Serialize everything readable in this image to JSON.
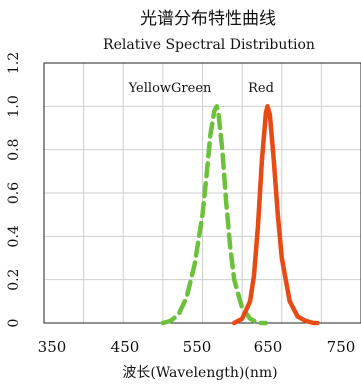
{
  "chart_data": {
    "type": "line",
    "title": "光谱分布特性曲线",
    "subtitle": "Relative Spectral Distribution",
    "xlabel": "波长(Wavelength)(nm)",
    "ylabel": "",
    "xlim": [
      350,
      750
    ],
    "ylim": [
      0,
      1.2
    ],
    "x_ticks": [
      "350",
      "450",
      "550",
      "650",
      "750"
    ],
    "y_ticks": [
      "0",
      "0.2",
      "0.4",
      "0.6",
      "0.8",
      "1.0",
      "1.2"
    ],
    "grid": true,
    "legend": "inline-labels",
    "series": [
      {
        "name": "YellowGreen",
        "color": "#6cc13a",
        "style": "dashed",
        "x": [
          500,
          510,
          520,
          530,
          540,
          550,
          555,
          560,
          565,
          568,
          570,
          575,
          580,
          585,
          590,
          600,
          610,
          620,
          630
        ],
        "y": [
          0.0,
          0.01,
          0.04,
          0.12,
          0.27,
          0.5,
          0.68,
          0.87,
          0.98,
          1.0,
          0.97,
          0.8,
          0.55,
          0.35,
          0.2,
          0.07,
          0.02,
          0.0,
          0.0
        ]
      },
      {
        "name": "Red",
        "color": "#e84a14",
        "style": "solid",
        "x": [
          590,
          600,
          610,
          615,
          620,
          625,
          630,
          632,
          635,
          640,
          645,
          650,
          660,
          670,
          680,
          690,
          695
        ],
        "y": [
          0.0,
          0.02,
          0.1,
          0.22,
          0.45,
          0.75,
          0.97,
          1.0,
          0.96,
          0.75,
          0.5,
          0.3,
          0.1,
          0.03,
          0.01,
          0.0,
          0.0
        ]
      }
    ]
  }
}
